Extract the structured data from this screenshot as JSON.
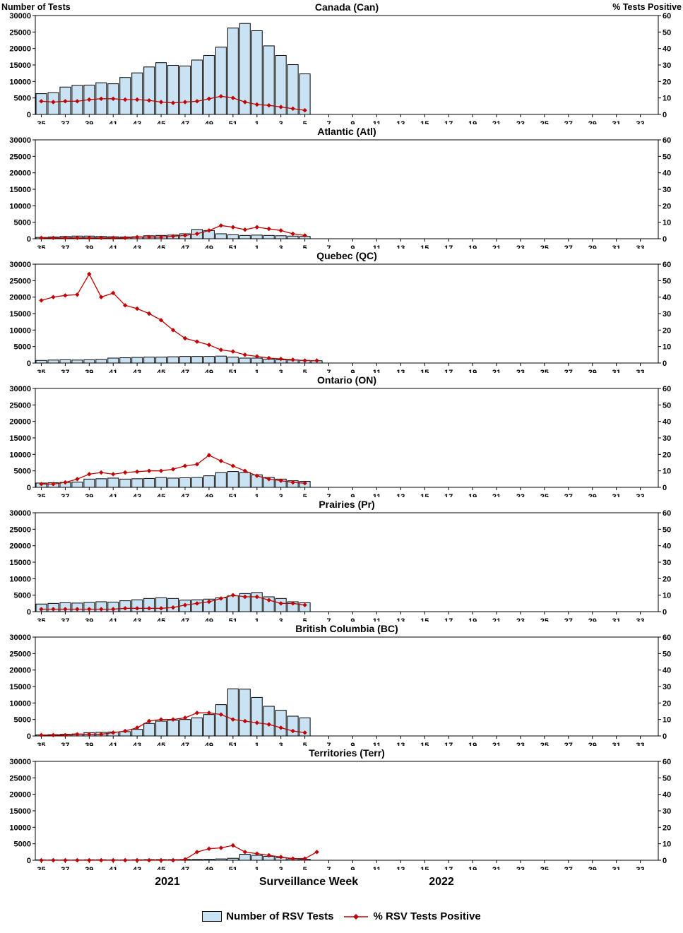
{
  "axes": {
    "left_label": "Number of Tests",
    "right_label": "% Tests Positive",
    "left_ticks": [
      0,
      5000,
      10000,
      15000,
      20000,
      25000,
      30000
    ],
    "right_ticks": [
      0,
      10,
      20,
      30,
      40,
      50,
      60
    ],
    "week_ticks": [
      35,
      37,
      39,
      41,
      43,
      45,
      47,
      49,
      51,
      1,
      3,
      5,
      7,
      9,
      11,
      13,
      15,
      17,
      19,
      21,
      23,
      25,
      27,
      29,
      31,
      33
    ]
  },
  "footer": {
    "year_left": "2021",
    "xlabel": "Surveillance Week",
    "year_right": "2022"
  },
  "legend": {
    "bars": "Number of RSV Tests",
    "line": "% RSV Tests Positive"
  },
  "colors": {
    "bar_fill": "#c9e3f5",
    "bar_stroke": "#000000",
    "line": "#c00000",
    "axis": "#000000"
  },
  "chart_data": [
    {
      "type": "bar+line",
      "title": "Canada (Can)",
      "weeks": [
        35,
        36,
        37,
        38,
        39,
        40,
        41,
        42,
        43,
        44,
        45,
        46,
        47,
        48,
        49,
        50,
        51,
        52,
        1,
        2,
        3,
        4,
        5,
        6
      ],
      "tests": [
        6300,
        6600,
        8300,
        8800,
        8900,
        9600,
        9300,
        11200,
        12600,
        14400,
        15700,
        14900,
        14700,
        16500,
        17900,
        20400,
        26200,
        27600,
        25400,
        20800,
        17900,
        15100,
        12300,
        null
      ],
      "pct_positive": [
        8,
        7.5,
        8,
        8,
        9,
        9.5,
        9.5,
        9,
        9,
        8.5,
        7.5,
        7,
        7.5,
        8,
        9.5,
        11,
        10,
        7.5,
        6,
        5.5,
        4.5,
        3.5,
        2.5,
        null
      ],
      "left_ylim": [
        0,
        30000
      ],
      "right_ylim": [
        0,
        60
      ]
    },
    {
      "type": "bar+line",
      "title": "Atlantic (Atl)",
      "weeks": [
        35,
        36,
        37,
        38,
        39,
        40,
        41,
        42,
        43,
        44,
        45,
        46,
        47,
        48,
        49,
        50,
        51,
        52,
        1,
        2,
        3,
        4,
        5,
        6
      ],
      "tests": [
        400,
        500,
        700,
        800,
        800,
        700,
        600,
        500,
        600,
        900,
        1000,
        1100,
        1500,
        2800,
        2500,
        1500,
        1200,
        1000,
        1100,
        1000,
        900,
        800,
        700,
        null
      ],
      "pct_positive": [
        0.5,
        0.5,
        0.5,
        0.5,
        0.5,
        0.5,
        0.5,
        0.5,
        1,
        1,
        1,
        1.5,
        2,
        3,
        5,
        8,
        7,
        5.5,
        7,
        6,
        5,
        3,
        2,
        null
      ],
      "left_ylim": [
        0,
        30000
      ],
      "right_ylim": [
        0,
        60
      ]
    },
    {
      "type": "bar+line",
      "title": "Quebec (QC)",
      "weeks": [
        35,
        36,
        37,
        38,
        39,
        40,
        41,
        42,
        43,
        44,
        45,
        46,
        47,
        48,
        49,
        50,
        51,
        52,
        1,
        2,
        3,
        4,
        5,
        6
      ],
      "tests": [
        800,
        900,
        1000,
        900,
        1000,
        1100,
        1500,
        1600,
        1700,
        1800,
        1800,
        1900,
        2000,
        2000,
        2000,
        2100,
        1800,
        1500,
        1500,
        1200,
        1000,
        900,
        800,
        700
      ],
      "pct_positive": [
        38,
        40,
        41,
        41.5,
        54,
        40,
        42.5,
        35,
        33,
        30,
        26,
        20,
        15,
        13,
        11,
        8,
        7,
        5,
        4,
        3,
        2.5,
        2,
        1.5,
        1.5
      ],
      "left_ylim": [
        0,
        30000
      ],
      "right_ylim": [
        0,
        60
      ]
    },
    {
      "type": "bar+line",
      "title": "Ontario (ON)",
      "weeks": [
        35,
        36,
        37,
        38,
        39,
        40,
        41,
        42,
        43,
        44,
        45,
        46,
        47,
        48,
        49,
        50,
        51,
        52,
        1,
        2,
        3,
        4,
        5,
        6
      ],
      "tests": [
        1300,
        1400,
        1500,
        1600,
        2500,
        2600,
        2800,
        2500,
        2600,
        2700,
        3000,
        2800,
        2900,
        3000,
        3500,
        4500,
        4800,
        4500,
        3800,
        3000,
        2500,
        2000,
        1800,
        null
      ],
      "pct_positive": [
        2,
        2,
        3,
        5,
        8,
        9,
        8,
        9,
        9.5,
        10,
        10,
        11,
        13,
        14,
        19.5,
        16,
        13,
        10,
        7,
        5,
        4,
        3,
        2.5,
        null
      ],
      "left_ylim": [
        0,
        30000
      ],
      "right_ylim": [
        0,
        60
      ]
    },
    {
      "type": "bar+line",
      "title": "Prairies (Pr)",
      "weeks": [
        35,
        36,
        37,
        38,
        39,
        40,
        41,
        42,
        43,
        44,
        45,
        46,
        47,
        48,
        49,
        50,
        51,
        52,
        1,
        2,
        3,
        4,
        5,
        6
      ],
      "tests": [
        2300,
        2500,
        2700,
        2600,
        2800,
        3000,
        2900,
        3300,
        3600,
        4000,
        4200,
        4000,
        3500,
        3600,
        3800,
        4200,
        4800,
        5500,
        5800,
        4500,
        4000,
        3000,
        2700,
        null
      ],
      "pct_positive": [
        1.5,
        1.5,
        1.5,
        1.5,
        1.5,
        1.5,
        1.5,
        2,
        2,
        2,
        2,
        2.5,
        4,
        5,
        6,
        8,
        10,
        9,
        9,
        7,
        5,
        5,
        4,
        null
      ],
      "left_ylim": [
        0,
        30000
      ],
      "right_ylim": [
        0,
        60
      ]
    },
    {
      "type": "bar+line",
      "title": "British Columbia (BC)",
      "weeks": [
        35,
        36,
        37,
        38,
        39,
        40,
        41,
        42,
        43,
        44,
        45,
        46,
        47,
        48,
        49,
        50,
        51,
        52,
        1,
        2,
        3,
        4,
        5,
        6
      ],
      "tests": [
        300,
        400,
        500,
        600,
        1000,
        1100,
        1200,
        1300,
        2000,
        3800,
        4500,
        4800,
        5000,
        5500,
        6500,
        9500,
        14300,
        14200,
        11700,
        9000,
        7800,
        6000,
        5500,
        null
      ],
      "pct_positive": [
        0.5,
        0.5,
        0.5,
        1,
        1,
        1,
        2,
        3,
        5,
        9,
        10,
        10,
        11,
        14,
        14,
        13,
        10,
        9,
        8,
        7,
        5,
        3,
        2,
        null
      ],
      "left_ylim": [
        0,
        30000
      ],
      "right_ylim": [
        0,
        60
      ]
    },
    {
      "type": "bar+line",
      "title": "Territories (Terr)",
      "weeks": [
        35,
        36,
        37,
        38,
        39,
        40,
        41,
        42,
        43,
        44,
        45,
        46,
        47,
        48,
        49,
        50,
        51,
        52,
        1,
        2,
        3,
        4,
        5,
        6
      ],
      "tests": [
        100,
        100,
        100,
        100,
        150,
        150,
        100,
        100,
        150,
        200,
        200,
        200,
        250,
        250,
        300,
        400,
        600,
        1800,
        1500,
        1200,
        800,
        400,
        300,
        null
      ],
      "pct_positive": [
        0,
        0,
        0,
        0,
        0,
        0,
        0,
        0,
        0,
        0,
        0,
        0,
        0.5,
        5,
        7,
        7.5,
        9,
        5,
        4,
        3,
        2,
        1,
        1,
        5
      ],
      "left_ylim": [
        0,
        30000
      ],
      "right_ylim": [
        0,
        60
      ]
    }
  ]
}
